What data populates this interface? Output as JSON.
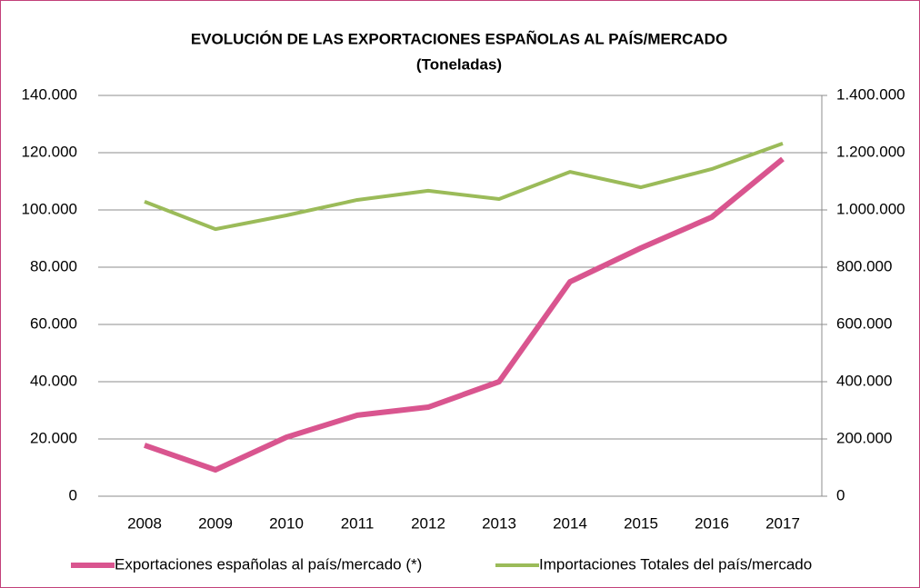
{
  "chart_data": {
    "type": "line",
    "title": "EVOLUCIÓN DE LAS EXPORTACIONES ESPAÑOLAS AL PAÍS/MERCADO",
    "subtitle": "(Toneladas)",
    "categories": [
      "2008",
      "2009",
      "2010",
      "2011",
      "2012",
      "2013",
      "2014",
      "2015",
      "2016",
      "2017"
    ],
    "series": [
      {
        "name": "Exportaciones españolas al país/mercado (*)",
        "color": "#d9558f",
        "axis": "y",
        "values": [
          17800,
          9200,
          20600,
          28300,
          31100,
          40000,
          74900,
          86700,
          97500,
          117800
        ]
      },
      {
        "name": "Importaciones Totales del país/mercado",
        "color": "#9bbb59",
        "axis": "y2",
        "values": [
          1029000,
          933000,
          981000,
          1035000,
          1067000,
          1038000,
          1133000,
          1079000,
          1143000,
          1232000
        ]
      }
    ],
    "ylim": [
      0,
      140000
    ],
    "yticks": [
      0,
      {
        "value": 20000,
        "label": "20.000"
      },
      {
        "value": 40000,
        "label": "40.000"
      },
      {
        "value": 60000,
        "label": "60.000"
      },
      {
        "value": 80000,
        "label": "80.000"
      },
      {
        "value": 100000,
        "label": "100.000"
      },
      {
        "value": 120000,
        "label": "120.000"
      },
      {
        "value": 140000,
        "label": "140.000"
      }
    ],
    "y2lim": [
      0,
      1400000
    ],
    "y2ticks": [
      0,
      {
        "value": 200000,
        "label": "200.000"
      },
      {
        "value": 400000,
        "label": "400.000"
      },
      {
        "value": 600000,
        "label": "600.000"
      },
      {
        "value": 800000,
        "label": "800.000"
      },
      {
        "value": 1000000,
        "label": "1.000.000"
      },
      {
        "value": 1200000,
        "label": "1.200.000"
      },
      {
        "value": 1400000,
        "label": "1.400.000"
      }
    ],
    "grid": true,
    "legend": "bottom"
  }
}
